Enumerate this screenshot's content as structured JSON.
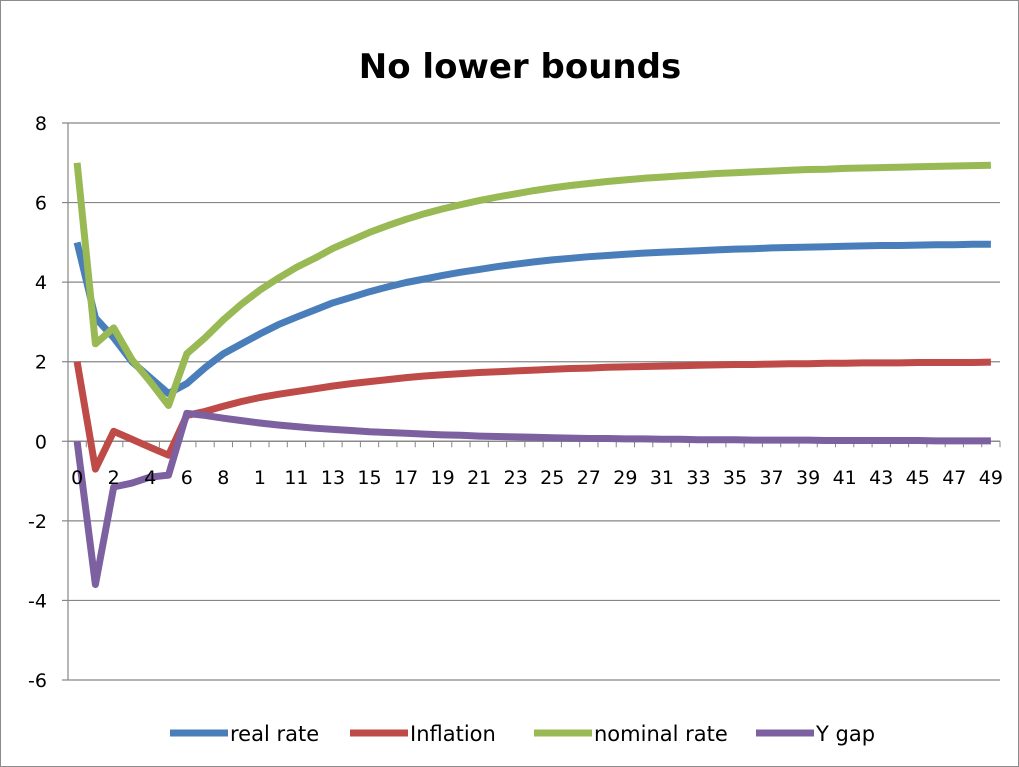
{
  "chart_data": {
    "type": "line",
    "title": "No lower bounds",
    "xlabel": "",
    "ylabel": "",
    "ylim": [
      -6,
      8
    ],
    "yticks": [
      "8",
      "6",
      "4",
      "2",
      "0",
      "-2",
      "-4",
      "-6"
    ],
    "xtick_labels": [
      "0",
      "2",
      "4",
      "6",
      "8",
      "1",
      "11",
      "13",
      "15",
      "17",
      "19",
      "21",
      "23",
      "25",
      "27",
      "29",
      "31",
      "33",
      "35",
      "37",
      "39",
      "41",
      "43",
      "45",
      "47",
      "49"
    ],
    "x": [
      0,
      1,
      2,
      3,
      4,
      5,
      6,
      7,
      8,
      9,
      10,
      11,
      12,
      13,
      14,
      15,
      16,
      17,
      18,
      19,
      20,
      21,
      22,
      23,
      24,
      25,
      26,
      27,
      28,
      29,
      30,
      31,
      32,
      33,
      34,
      35,
      36,
      37,
      38,
      39,
      40,
      41,
      42,
      43,
      44,
      45,
      46,
      47,
      48,
      49,
      50
    ],
    "grid": true,
    "legend_position": "bottom",
    "series": [
      {
        "name": "real rate",
        "color": "#4a7ebb",
        "values": [
          5.0,
          3.1,
          2.6,
          2.0,
          1.6,
          1.2,
          1.45,
          1.85,
          2.2,
          2.45,
          2.7,
          2.93,
          3.12,
          3.3,
          3.48,
          3.62,
          3.76,
          3.88,
          3.99,
          4.08,
          4.17,
          4.25,
          4.32,
          4.39,
          4.45,
          4.51,
          4.56,
          4.6,
          4.64,
          4.67,
          4.7,
          4.73,
          4.75,
          4.77,
          4.79,
          4.81,
          4.83,
          4.84,
          4.86,
          4.87,
          4.88,
          4.89,
          4.9,
          4.91,
          4.92,
          4.92,
          4.93,
          4.94,
          4.94,
          4.95,
          4.95
        ]
      },
      {
        "name": "Inflation",
        "color": "#be4b48",
        "values": [
          2.0,
          -0.7,
          0.25,
          0.05,
          -0.15,
          -0.35,
          0.65,
          0.75,
          0.88,
          1.0,
          1.1,
          1.18,
          1.25,
          1.32,
          1.39,
          1.45,
          1.5,
          1.55,
          1.6,
          1.64,
          1.67,
          1.7,
          1.73,
          1.75,
          1.77,
          1.79,
          1.81,
          1.83,
          1.84,
          1.86,
          1.87,
          1.88,
          1.89,
          1.9,
          1.91,
          1.92,
          1.93,
          1.93,
          1.94,
          1.95,
          1.95,
          1.96,
          1.96,
          1.97,
          1.97,
          1.97,
          1.98,
          1.98,
          1.98,
          1.98,
          1.99
        ]
      },
      {
        "name": "nominal rate",
        "color": "#98b954",
        "values": [
          7.0,
          2.45,
          2.85,
          2.05,
          1.5,
          0.9,
          2.2,
          2.6,
          3.05,
          3.45,
          3.8,
          4.1,
          4.37,
          4.6,
          4.85,
          5.05,
          5.25,
          5.42,
          5.58,
          5.72,
          5.84,
          5.95,
          6.05,
          6.14,
          6.22,
          6.3,
          6.37,
          6.43,
          6.48,
          6.53,
          6.57,
          6.61,
          6.64,
          6.67,
          6.7,
          6.73,
          6.75,
          6.77,
          6.79,
          6.81,
          6.83,
          6.84,
          6.86,
          6.87,
          6.88,
          6.89,
          6.9,
          6.91,
          6.92,
          6.93,
          6.94
        ]
      },
      {
        "name": "Y gap",
        "color": "#7d60a0",
        "values": [
          0.0,
          -3.6,
          -1.15,
          -1.05,
          -0.9,
          -0.85,
          0.7,
          0.65,
          0.58,
          0.52,
          0.46,
          0.41,
          0.37,
          0.33,
          0.3,
          0.27,
          0.24,
          0.22,
          0.2,
          0.18,
          0.16,
          0.15,
          0.13,
          0.12,
          0.11,
          0.1,
          0.09,
          0.08,
          0.07,
          0.07,
          0.06,
          0.06,
          0.05,
          0.05,
          0.04,
          0.04,
          0.04,
          0.03,
          0.03,
          0.03,
          0.03,
          0.02,
          0.02,
          0.02,
          0.02,
          0.02,
          0.02,
          0.01,
          0.01,
          0.01,
          0.01
        ]
      }
    ]
  }
}
